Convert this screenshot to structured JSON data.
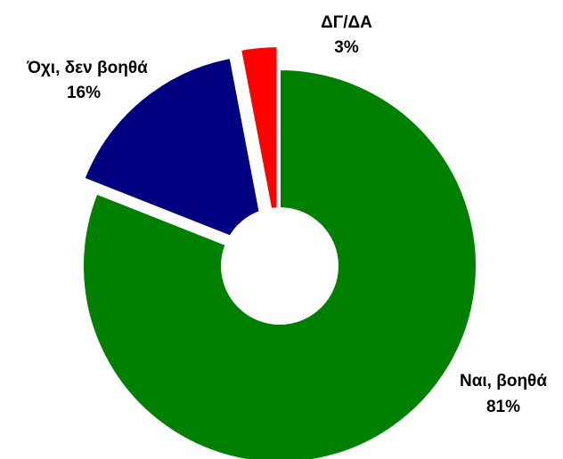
{
  "chart_data": {
    "type": "pie",
    "title": "",
    "donut": true,
    "legend": "none",
    "slices": [
      {
        "label": "Ναι, βοηθά",
        "percent_label": "81%",
        "value": 81,
        "color": "#008000",
        "exploded": false
      },
      {
        "label": "Όχι, δεν βοηθά",
        "percent_label": "16%",
        "value": 16,
        "color": "#000080",
        "exploded": true
      },
      {
        "label": "ΔΓ/ΔΑ",
        "percent_label": "3%",
        "value": 3,
        "color": "#ff0000",
        "exploded": true
      }
    ]
  }
}
